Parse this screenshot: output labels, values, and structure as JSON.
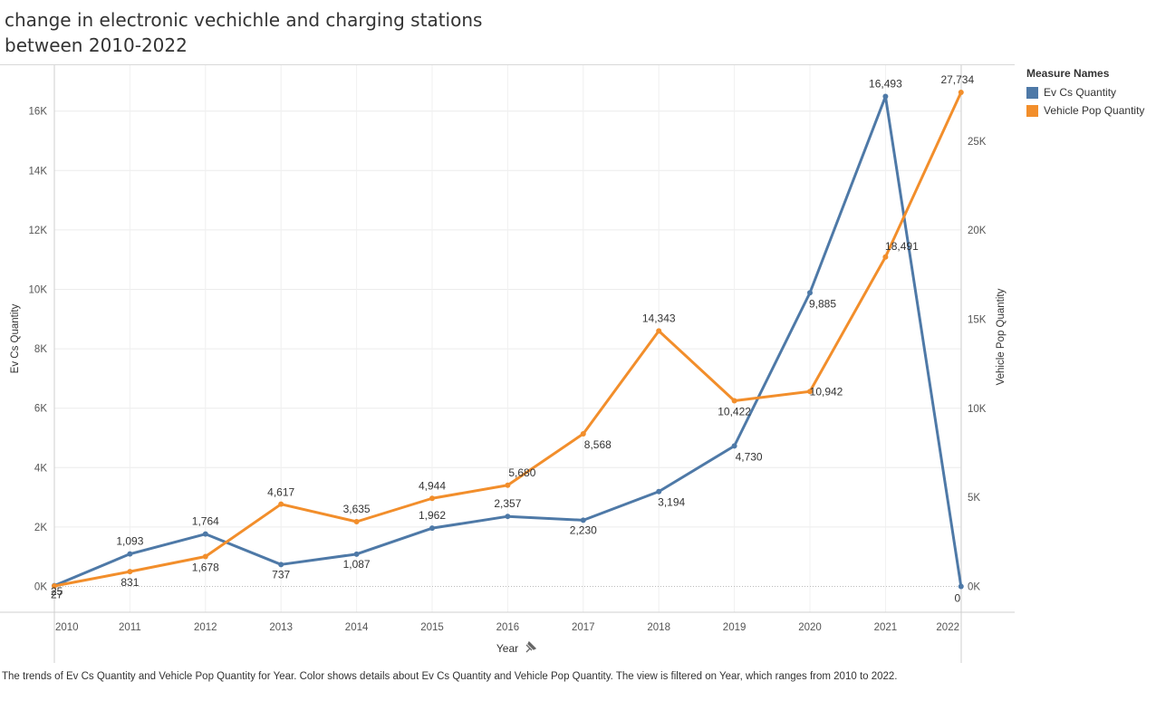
{
  "title_lines": [
    "change in electronic vechichle and charging stations",
    "between 2010-2022"
  ],
  "legend": {
    "title": "Measure Names",
    "items": [
      {
        "label": "Ev Cs Quantity",
        "color": "#4e79a7"
      },
      {
        "label": "Vehicle Pop Quantity",
        "color": "#f28e2b"
      }
    ]
  },
  "caption": "The trends of Ev Cs Quantity and Vehicle Pop Quantity for Year.  Color shows details about Ev Cs Quantity and Vehicle Pop Quantity. The view is filtered on Year, which ranges from 2010 to 2022.",
  "chart_data": {
    "type": "line",
    "x": [
      "2010",
      "2011",
      "2012",
      "2013",
      "2014",
      "2015",
      "2016",
      "2017",
      "2018",
      "2019",
      "2020",
      "2021",
      "2022"
    ],
    "xlabel": "Year",
    "series": [
      {
        "name": "Ev Cs Quantity",
        "axis": "left",
        "color": "#4e79a7",
        "values": [
          27,
          1093,
          1764,
          737,
          1087,
          1962,
          2357,
          2230,
          3194,
          4730,
          9885,
          16493,
          0
        ],
        "labels": [
          "27",
          "1,093",
          "1,764",
          "737",
          "1,087",
          "1,962",
          "2,357",
          "2,230",
          "3,194",
          "4,730",
          "9,885",
          "16,493",
          "0"
        ]
      },
      {
        "name": "Vehicle Pop Quantity",
        "axis": "right",
        "color": "#f28e2b",
        "values": [
          25,
          831,
          1678,
          4617,
          3635,
          4944,
          5680,
          8568,
          14343,
          10422,
          10942,
          18491,
          27734
        ],
        "labels": [
          "25",
          "831",
          "1,678",
          "4,617",
          "3,635",
          "4,944",
          "5,680",
          "8,568",
          "14,343",
          "10,422",
          "10,942",
          "18,491",
          "27,734"
        ]
      }
    ],
    "y_left": {
      "label": "Ev Cs Quantity",
      "ticks": [
        0,
        2000,
        4000,
        6000,
        8000,
        10000,
        12000,
        14000,
        16000
      ],
      "tick_labels": [
        "0K",
        "2K",
        "4K",
        "6K",
        "8K",
        "10K",
        "12K",
        "14K",
        "16K"
      ],
      "range": [
        0,
        16493
      ]
    },
    "y_right": {
      "label": "Vehicle Pop Quantity",
      "ticks": [
        0,
        5000,
        10000,
        15000,
        20000,
        25000
      ],
      "tick_labels": [
        "0K",
        "5K",
        "10K",
        "15K",
        "20K",
        "25K"
      ],
      "range": [
        0,
        27734
      ]
    },
    "grid": true,
    "legend_position": "right"
  }
}
